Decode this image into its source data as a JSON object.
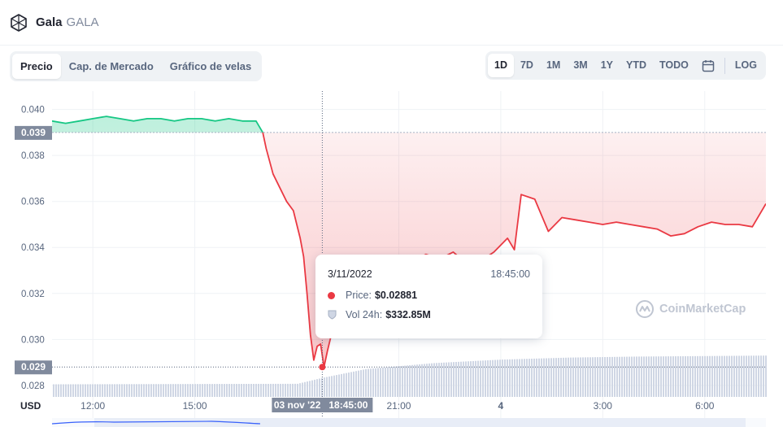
{
  "header": {
    "coin_name": "Gala",
    "coin_symbol": "GALA",
    "logo_icon": "gala-logo-icon"
  },
  "tabs": [
    {
      "label": "Precio",
      "active": true
    },
    {
      "label": "Cap. de Mercado",
      "active": false
    },
    {
      "label": "Gráfico de velas",
      "active": false
    }
  ],
  "ranges": [
    {
      "label": "1D",
      "active": true
    },
    {
      "label": "7D",
      "active": false
    },
    {
      "label": "1M",
      "active": false
    },
    {
      "label": "3M",
      "active": false
    },
    {
      "label": "1Y",
      "active": false
    },
    {
      "label": "YTD",
      "active": false
    },
    {
      "label": "TODO",
      "active": false
    }
  ],
  "calendar_icon": "calendar-icon",
  "log_label": "LOG",
  "tooltip": {
    "date": "3/11/2022",
    "time": "18:45:00",
    "price_label": "Price:",
    "price_value": "$0.02881",
    "volume_label": "Vol 24h:",
    "volume_value": "$332.85M",
    "price_dot_color": "#ea3943",
    "volume_icon": "shield-icon"
  },
  "watermark": "CoinMarketCap",
  "colors": {
    "up": "#16c784",
    "down": "#ea3943",
    "crosshair": "#58667e",
    "open_line": "#a6b0c3"
  },
  "chart_data": {
    "type": "line",
    "ylabel": "USD",
    "yticks": [
      "0.040",
      "0.038",
      "0.036",
      "0.034",
      "0.032",
      "0.030",
      "0.028"
    ],
    "ytick_values": [
      0.04,
      0.038,
      0.036,
      0.034,
      0.032,
      0.03,
      0.028
    ],
    "ylim": [
      0.0275,
      0.0408
    ],
    "xticks": [
      "12:00",
      "15:00",
      "21:00",
      "4",
      "3:00",
      "6:00"
    ],
    "xtick_hours": [
      12,
      15,
      21,
      24,
      27,
      30
    ],
    "xlim": [
      10.8,
      31.8
    ],
    "open_price": 0.039,
    "open_label": "0.039",
    "hover": {
      "hour": 18.75,
      "price": 0.0288,
      "price_label": "0.029",
      "x_label_date": "03 nov '22",
      "x_label_time": "18:45:00"
    },
    "series": [
      {
        "x": [
          10.8,
          11.2,
          11.6,
          12.0,
          12.4,
          12.8,
          13.2,
          13.6,
          14.0,
          14.4,
          14.8,
          15.2,
          15.6,
          16.0,
          16.4,
          16.8,
          17.0,
          17.1,
          17.3,
          17.5,
          17.7,
          17.9,
          18.0,
          18.1,
          18.2,
          18.3,
          18.4,
          18.5,
          18.6,
          18.7,
          18.8,
          18.9,
          19.0,
          19.1,
          19.3,
          19.5,
          19.7,
          19.9,
          20.1,
          20.5,
          21.0,
          21.4,
          21.8,
          22.2,
          22.6,
          23.0,
          23.4,
          23.8,
          24.2,
          24.4,
          24.6,
          25.0,
          25.4,
          25.8,
          26.2,
          26.6,
          27.0,
          27.4,
          27.8,
          28.2,
          28.6,
          29.0,
          29.4,
          29.8,
          30.2,
          30.6,
          31.0,
          31.4,
          31.8
        ],
        "y": [
          0.0395,
          0.0394,
          0.0395,
          0.0396,
          0.0397,
          0.0396,
          0.0395,
          0.0396,
          0.0396,
          0.0395,
          0.0396,
          0.0396,
          0.0395,
          0.0396,
          0.0395,
          0.0395,
          0.039,
          0.0383,
          0.0372,
          0.0366,
          0.036,
          0.0356,
          0.035,
          0.0344,
          0.0336,
          0.032,
          0.0302,
          0.0291,
          0.0297,
          0.0298,
          0.0288,
          0.0295,
          0.0301,
          0.0306,
          0.0312,
          0.0317,
          0.032,
          0.0326,
          0.033,
          0.0331,
          0.0332,
          0.0334,
          0.0337,
          0.0335,
          0.0338,
          0.0333,
          0.0334,
          0.0338,
          0.0344,
          0.0339,
          0.0363,
          0.0361,
          0.0347,
          0.0353,
          0.0352,
          0.0351,
          0.035,
          0.0351,
          0.035,
          0.0349,
          0.0348,
          0.0345,
          0.0346,
          0.0349,
          0.0351,
          0.035,
          0.035,
          0.0349,
          0.0359
        ]
      }
    ],
    "volume": {
      "x": [
        10.8,
        18.0,
        18.75,
        20.0,
        22.0,
        24.0,
        26.0,
        28.0,
        30.0,
        31.8
      ],
      "values": [
        0.25,
        0.26,
        0.38,
        0.55,
        0.67,
        0.74,
        0.78,
        0.8,
        0.81,
        0.82
      ]
    }
  }
}
